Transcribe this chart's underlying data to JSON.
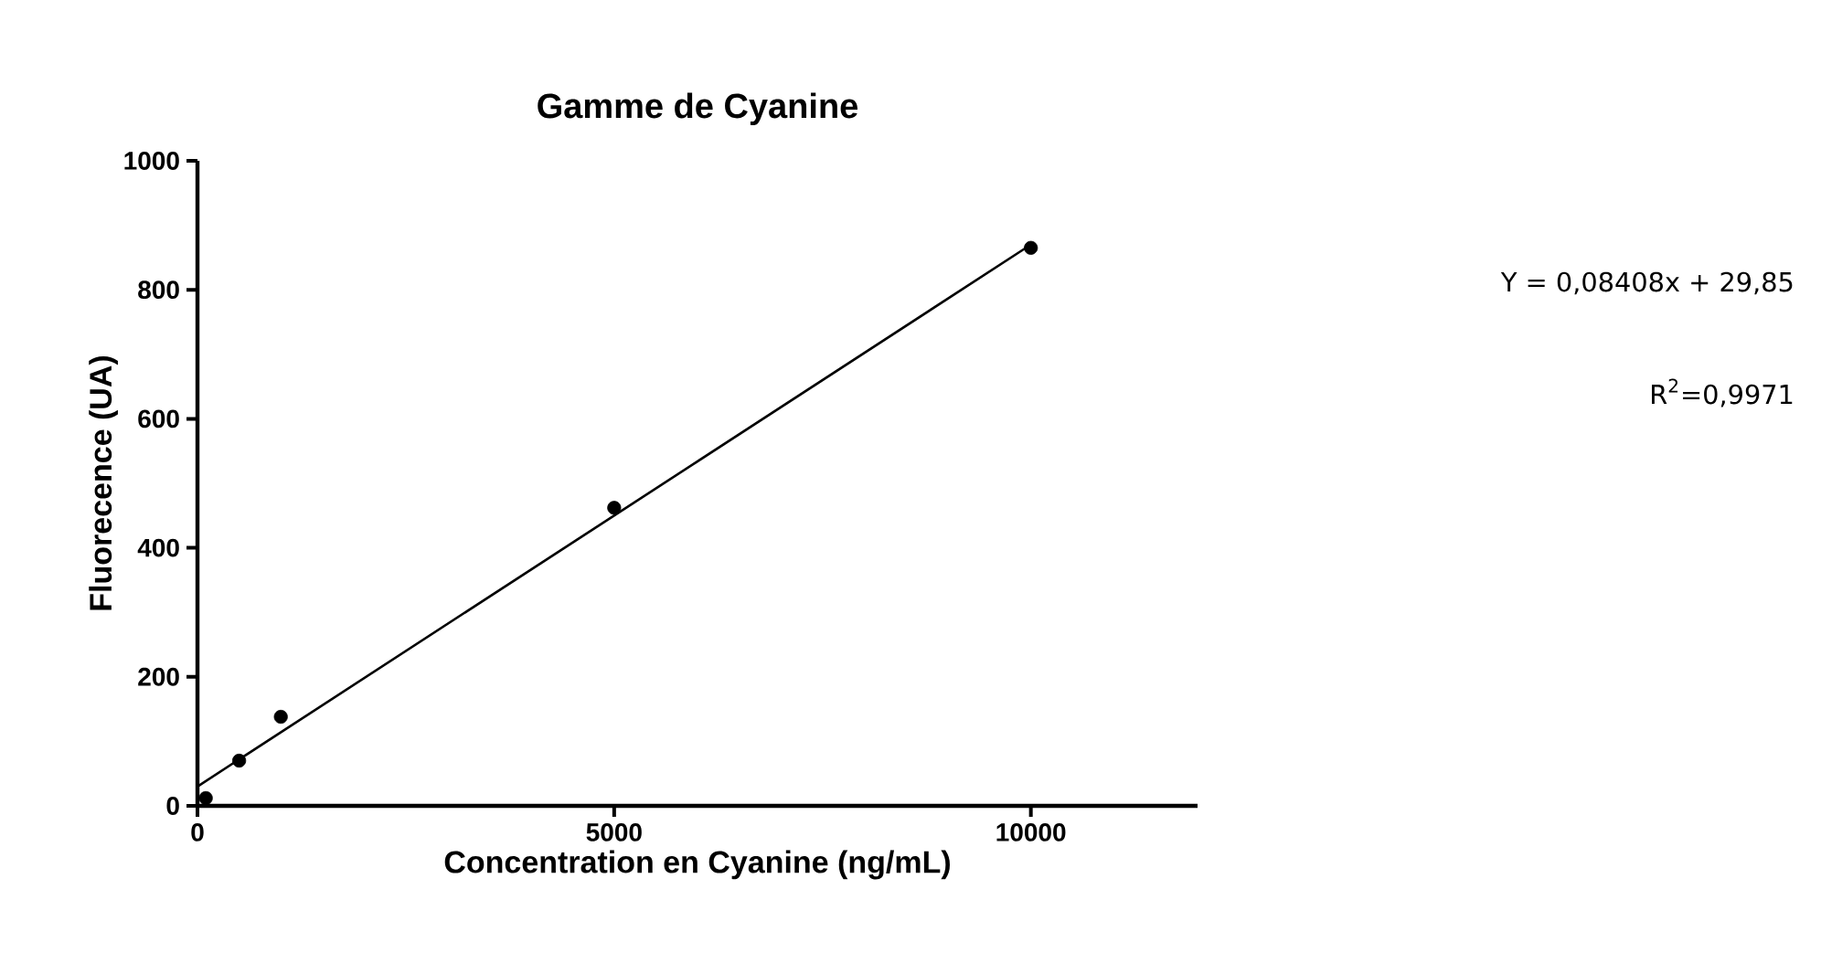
{
  "chart_data": {
    "type": "scatter",
    "title": "Gamme de Cyanine",
    "xlabel": "Concentration en Cyanine (ng/mL)",
    "ylabel": "Fluorecence (UA)",
    "x": [
      100,
      500,
      1000,
      5000,
      10000
    ],
    "series": [
      {
        "color": "#000000",
        "marker": "circle",
        "values": [
          12,
          70,
          138,
          462,
          865
        ]
      },
      {
        "type": "line",
        "color": "#000000",
        "marker": "none",
        "x": [
          0,
          10000
        ],
        "values": [
          30,
          870
        ]
      }
    ],
    "xlim": [
      0,
      12000
    ],
    "xticks": [
      0,
      5000,
      10000
    ],
    "ylim": [
      0,
      1000
    ],
    "yticks": [
      0,
      200,
      400,
      600,
      800,
      1000
    ],
    "grid": false,
    "annotations": [
      "Y = 0,08408x + 29,85",
      "R$^{2}$=0,9971"
    ]
  }
}
